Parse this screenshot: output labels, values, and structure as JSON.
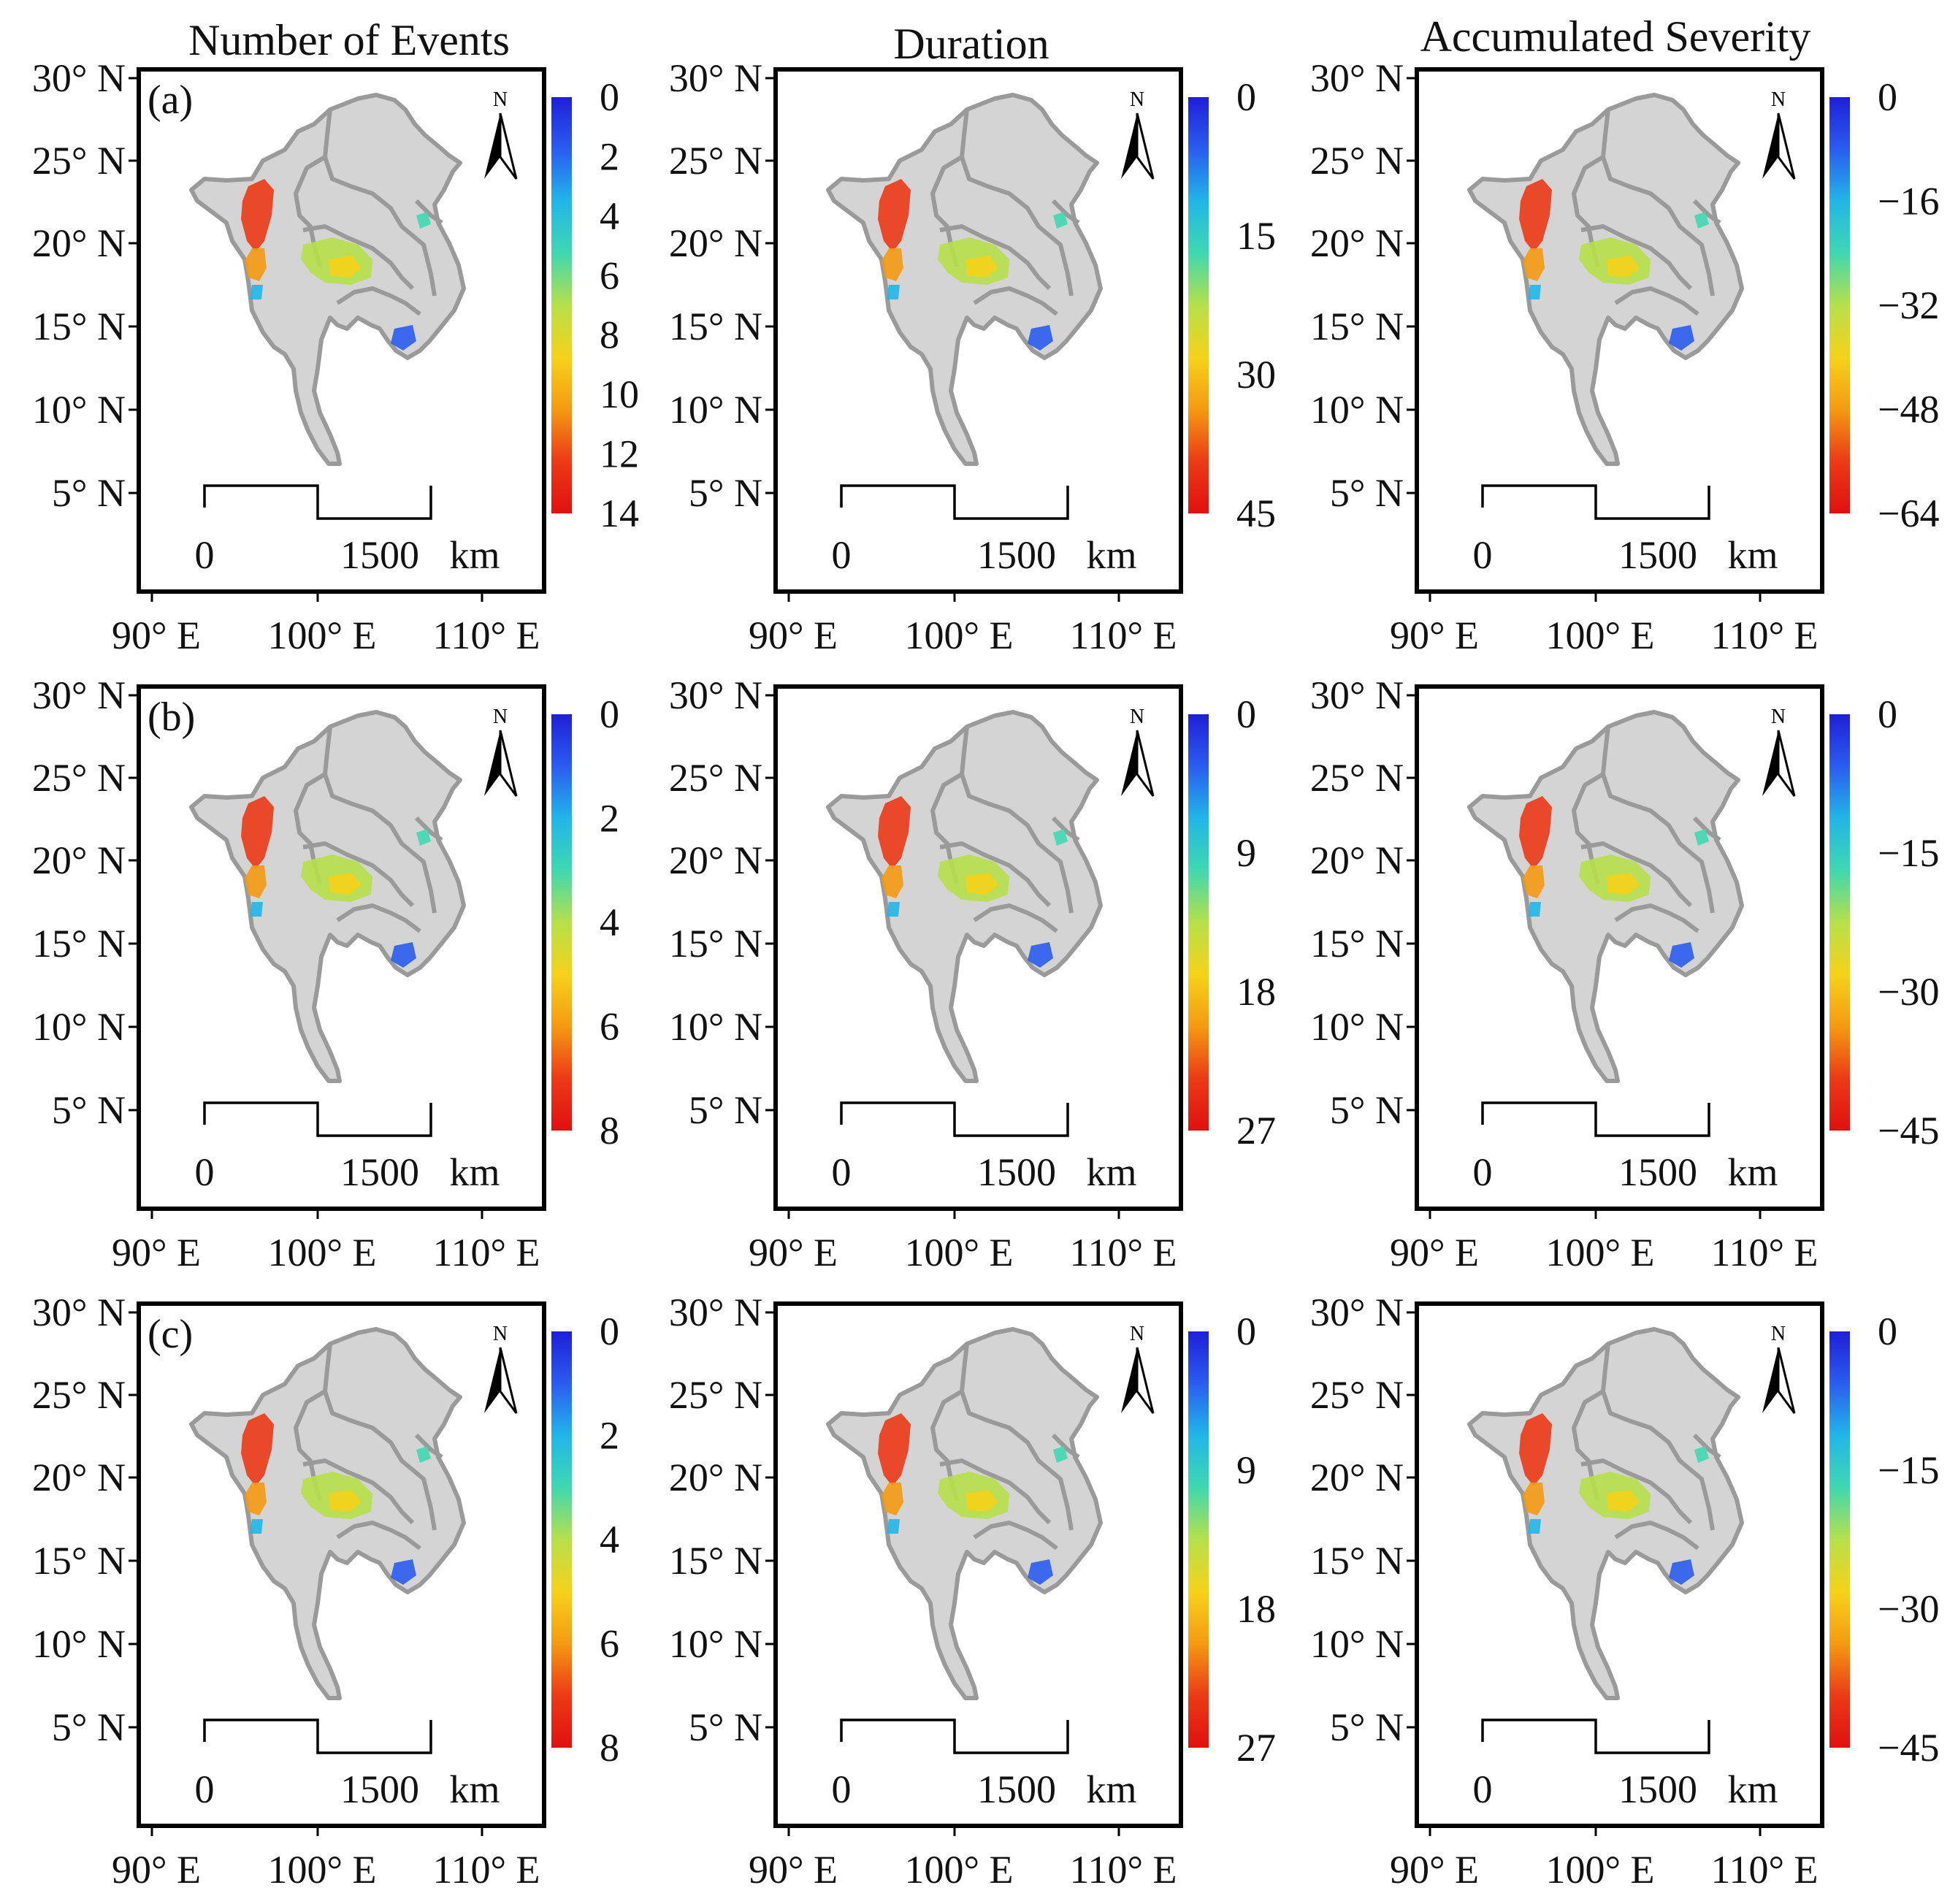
{
  "figure": {
    "column_titles": [
      "Number of Events",
      "Duration",
      "Accumulated Severity"
    ],
    "row_labels": [
      "(a)",
      "(b)",
      "(c)"
    ],
    "lat_labels": [
      "30° N",
      "25° N",
      "20° N",
      "15° N",
      "10° N",
      "5° N"
    ],
    "lon_labels": [
      "90° E",
      "100° E",
      "110° E"
    ],
    "scale": {
      "start": "0",
      "end": "1500",
      "unit": "km"
    },
    "north_arrow": "N",
    "colorbar_colors": [
      "#1f1fd8",
      "#2a5cf0",
      "#21b6e8",
      "#3fd8b0",
      "#b6e04a",
      "#f6d21a",
      "#f59a12",
      "#ec3a16",
      "#e01010"
    ],
    "panels": [
      {
        "id": "a1",
        "row": "(a)",
        "variable": "Number of Events",
        "colorbar_ticks": [
          "0",
          "2",
          "4",
          "6",
          "8",
          "10",
          "12",
          "14"
        ]
      },
      {
        "id": "a2",
        "row": "(a)",
        "variable": "Duration",
        "colorbar_ticks": [
          "0",
          "15",
          "30",
          "45"
        ]
      },
      {
        "id": "a3",
        "row": "(a)",
        "variable": "Accumulated Severity",
        "colorbar_ticks": [
          "0",
          "−16",
          "−32",
          "−48",
          "−64"
        ]
      },
      {
        "id": "b1",
        "row": "(b)",
        "variable": "Number of Events",
        "colorbar_ticks": [
          "0",
          "2",
          "4",
          "6",
          "8"
        ]
      },
      {
        "id": "b2",
        "row": "(b)",
        "variable": "Duration",
        "colorbar_ticks": [
          "0",
          "9",
          "18",
          "27"
        ]
      },
      {
        "id": "b3",
        "row": "(b)",
        "variable": "Accumulated Severity",
        "colorbar_ticks": [
          "0",
          "−15",
          "−30",
          "−45"
        ]
      },
      {
        "id": "c1",
        "row": "(c)",
        "variable": "Number of Events",
        "colorbar_ticks": [
          "0",
          "2",
          "4",
          "6",
          "8"
        ]
      },
      {
        "id": "c2",
        "row": "(c)",
        "variable": "Duration",
        "colorbar_ticks": [
          "0",
          "9",
          "18",
          "27"
        ]
      },
      {
        "id": "c3",
        "row": "(c)",
        "variable": "Accumulated Severity",
        "colorbar_ticks": [
          "0",
          "−15",
          "−30",
          "−45"
        ]
      }
    ]
  }
}
